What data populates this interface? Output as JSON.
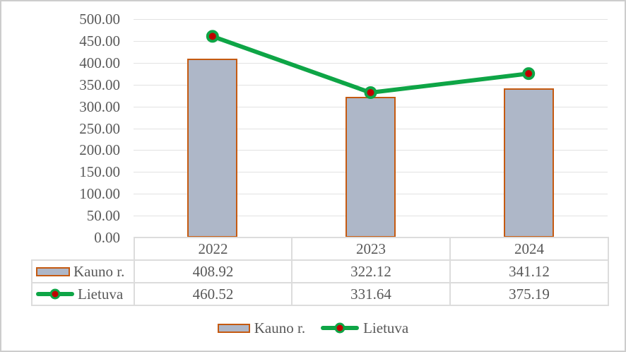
{
  "frame": {
    "background": "#ffffff",
    "border_color": "#cdcdcd"
  },
  "chart_data": {
    "type": "bar",
    "subtype": "combo bar+line",
    "title": "",
    "xlabel": "",
    "ylabel": "",
    "categories": [
      "2022",
      "2023",
      "2024"
    ],
    "series": [
      {
        "name": "Kauno r.",
        "type": "bar",
        "values": [
          408.92,
          322.12,
          341.12
        ],
        "fill": "#aeb7c8",
        "border_color": "#c55a11"
      },
      {
        "name": "Lietuva",
        "type": "line",
        "values": [
          460.52,
          331.64,
          375.19
        ],
        "line_color": "#0ea546",
        "marker_fill": "#c00000",
        "marker_border": "#0ea546"
      }
    ],
    "ylim": [
      0,
      500
    ],
    "y_tick_step": 50,
    "y_ticks": [
      "500.00",
      "450.00",
      "400.00",
      "350.00",
      "300.00",
      "250.00",
      "200.00",
      "150.00",
      "100.00",
      "50.00",
      "0.00"
    ],
    "grid": true,
    "gridline_color": "#e2e2e2",
    "axis_text_color": "#595959",
    "legend_position": "bottom",
    "data_table_shown": true
  },
  "table": {
    "columns": [
      "2022",
      "2023",
      "2024"
    ],
    "rows": [
      {
        "label": "Kauno r.",
        "values": [
          "408.92",
          "322.12",
          "341.12"
        ]
      },
      {
        "label": "Lietuva",
        "values": [
          "460.52",
          "331.64",
          "375.19"
        ]
      }
    ],
    "border_color": "#dcdcdc"
  },
  "legend": {
    "items": [
      {
        "label": "Kauno r."
      },
      {
        "label": "Lietuva"
      }
    ]
  }
}
